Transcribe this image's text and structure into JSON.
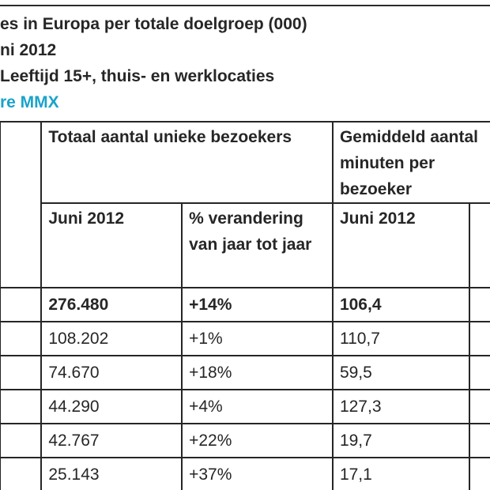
{
  "header": {
    "line1": "es in Europa per totale doelgroep (000)",
    "line2": "ni 2012",
    "line3": "Leeftijd 15+, thuis- en werklocaties",
    "line4": "re MMX"
  },
  "table": {
    "group_headers": {
      "total_unique": "Totaal aantal unieke bezoekers",
      "avg_per_visitor": "Gemiddeld aantal minuten per bezoeker"
    },
    "sub_headers": {
      "june_2012": "Juni 2012",
      "yoy_change": "% verandering van jaar tot jaar",
      "june_2012_b": "Juni 2012"
    },
    "rows": [
      {
        "total": "276.480",
        "change": "+14%",
        "avg": "106,4"
      },
      {
        "total": "108.202",
        "change": "+1%",
        "avg": "110,7"
      },
      {
        "total": "74.670",
        "change": "+18%",
        "avg": "59,5"
      },
      {
        "total": "44.290",
        "change": "+4%",
        "avg": "127,3"
      },
      {
        "total": "42.767",
        "change": "+22%",
        "avg": "19,7"
      },
      {
        "total": "25.143",
        "change": "+37%",
        "avg": "17,1"
      }
    ]
  }
}
